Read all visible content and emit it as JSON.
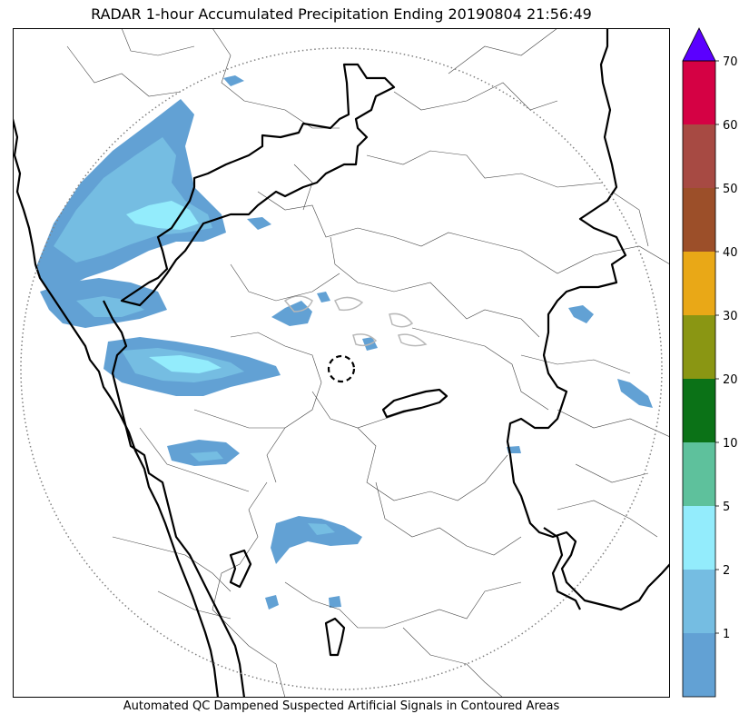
{
  "title": "RADAR 1-hour Accumulated Precipitation Ending 20190804 21:56:49",
  "caption": "Automated QC Dampened Suspected Artificial Signals in Contoured Areas",
  "colorbar": {
    "ticks": [
      "1",
      "2",
      "5",
      "10",
      "20",
      "30",
      "40",
      "50",
      "60",
      "70"
    ],
    "bands": [
      {
        "label": "0-1",
        "color": "#62a1d4"
      },
      {
        "label": "1-2",
        "color": "#75bde2"
      },
      {
        "label": "2-5",
        "color": "#93ecfc"
      },
      {
        "label": "5-10",
        "color": "#5ec19c"
      },
      {
        "label": "10-20",
        "color": "#0b7217"
      },
      {
        "label": "20-30",
        "color": "#8a9613"
      },
      {
        "label": "30-40",
        "color": "#e9a817"
      },
      {
        "label": "40-50",
        "color": "#9c4f29"
      },
      {
        "label": "50-60",
        "color": "#a74a43"
      },
      {
        "label": "60-70",
        "color": "#d50144"
      }
    ],
    "extend_color": "#5b00ff"
  },
  "map": {
    "layers": [
      "precipitation",
      "state-boundaries",
      "district-boundaries",
      "coastline",
      "radar-range-ring",
      "radar-site-marker",
      "qc-contours"
    ],
    "colors": {
      "light_rain": "#62a1d4",
      "moderate_rain": "#75bde2",
      "heavier_rain": "#93ecfc",
      "state_boundary": "#000000",
      "district_boundary": "#444444",
      "range_ring": "#808080",
      "qc_contour": "#b8b8b8"
    }
  }
}
